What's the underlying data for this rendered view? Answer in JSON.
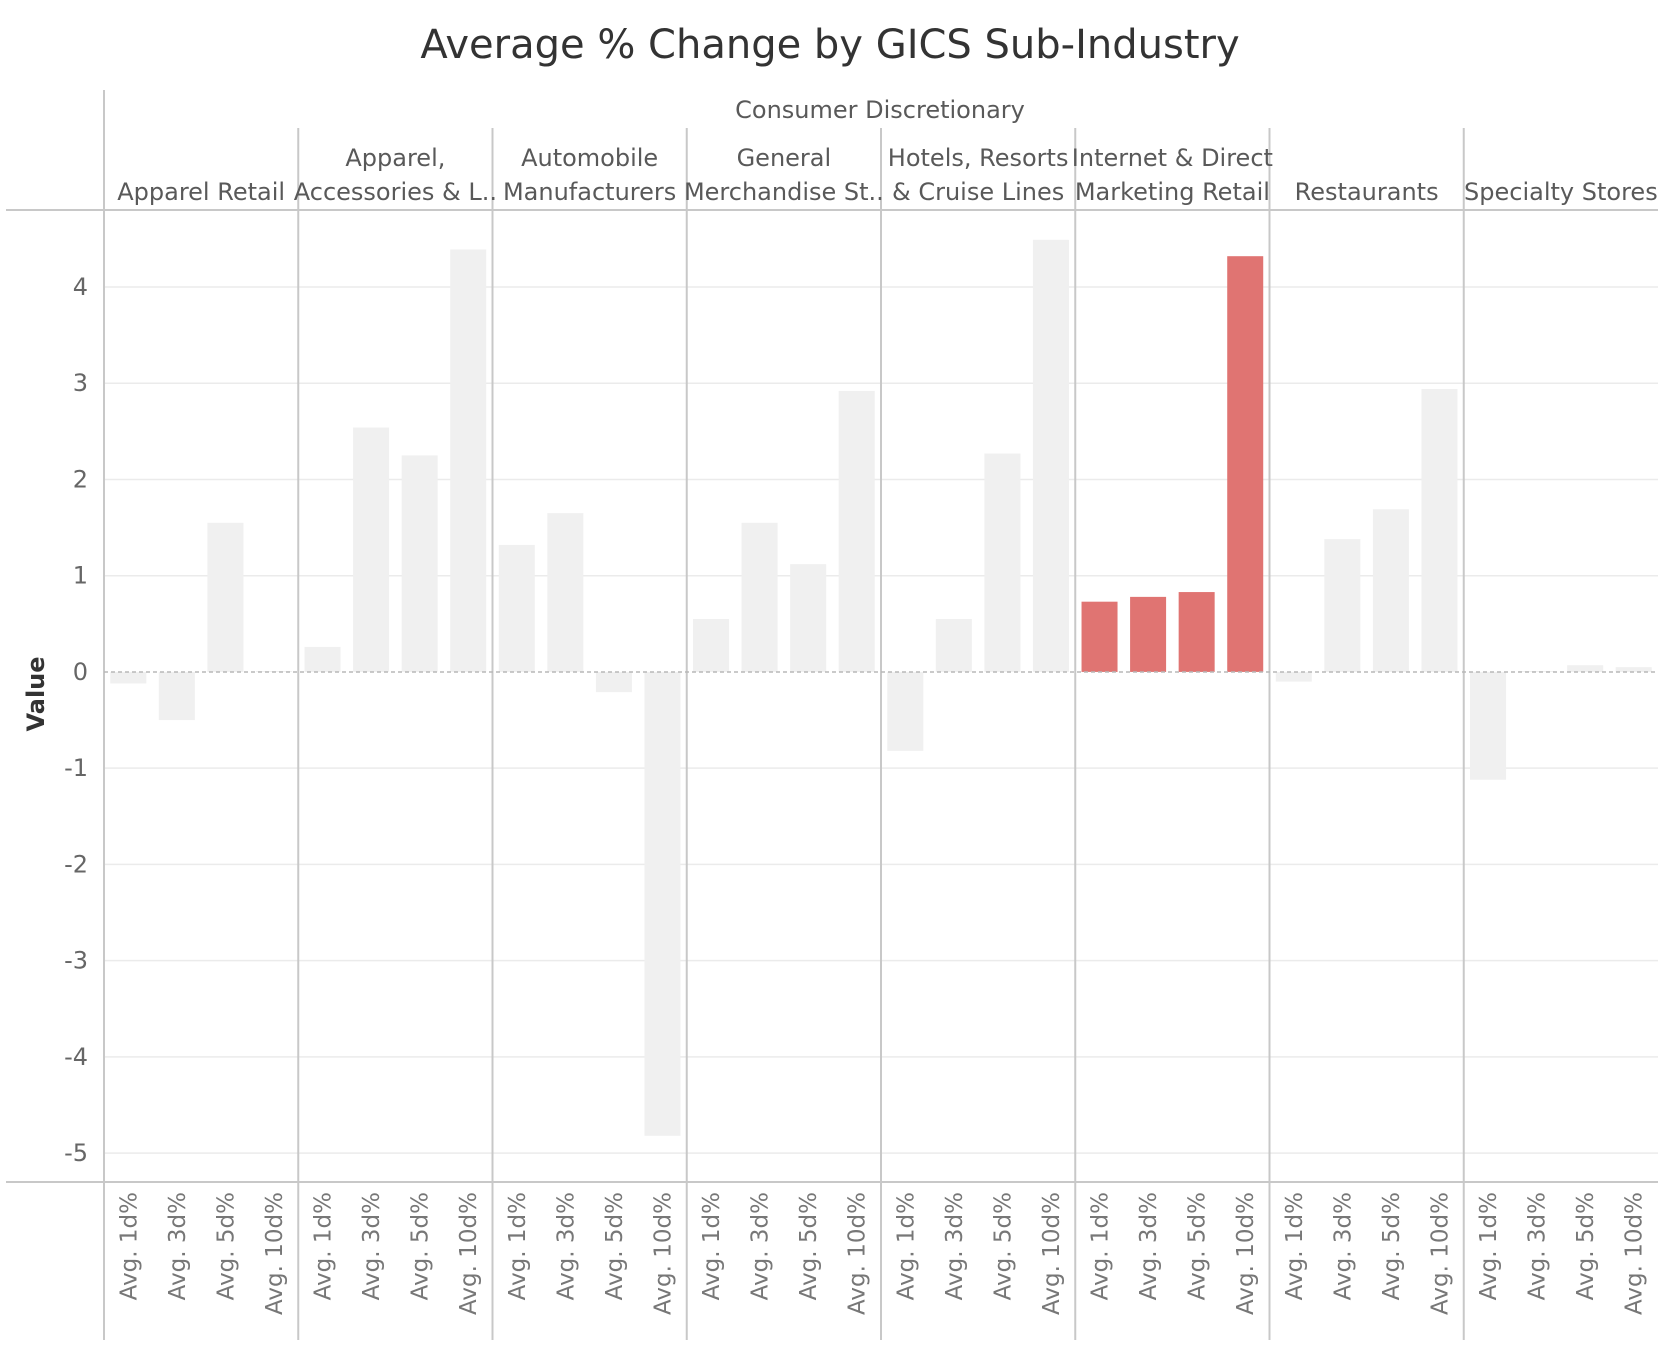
{
  "chart_data": {
    "type": "bar",
    "title": "Average % Change by GICS Sub-Industry",
    "sector": "Consumer Discretionary",
    "ylabel": "Value",
    "ylim": [
      -5.3,
      4.8
    ],
    "yticks": [
      4,
      3,
      2,
      1,
      0,
      -1,
      -2,
      -3,
      -4,
      -5
    ],
    "grid": true,
    "categories": [
      "Avg. 1d%",
      "Avg. 3d%",
      "Avg. 5d%",
      "Avg. 10d%"
    ],
    "highlight_color": "#e07472",
    "base_color": "#f0f0f0",
    "panels": [
      {
        "name": "Apparel Retail",
        "header_lines": [
          "Apparel Retail"
        ],
        "values": [
          -0.12,
          -0.5,
          1.55,
          0.01
        ],
        "highlighted": false
      },
      {
        "name": "Apparel, Accessories & L..",
        "header_lines": [
          "Apparel,",
          "Accessories & L.."
        ],
        "values": [
          0.26,
          2.54,
          2.25,
          4.39
        ],
        "highlighted": false
      },
      {
        "name": "Automobile Manufacturers",
        "header_lines": [
          "Automobile",
          "Manufacturers"
        ],
        "values": [
          1.32,
          1.65,
          -0.21,
          -4.82
        ],
        "highlighted": false
      },
      {
        "name": "General Merchandise St..",
        "header_lines": [
          "General",
          "Merchandise St.."
        ],
        "values": [
          0.55,
          1.55,
          1.12,
          2.92
        ],
        "highlighted": false
      },
      {
        "name": "Hotels, Resorts & Cruise Lines",
        "header_lines": [
          "Hotels, Resorts",
          "& Cruise Lines"
        ],
        "values": [
          -0.82,
          0.55,
          2.27,
          4.49
        ],
        "highlighted": false
      },
      {
        "name": "Internet & Direct Marketing Retail",
        "header_lines": [
          "Internet & Direct",
          "Marketing Retail"
        ],
        "values": [
          0.73,
          0.78,
          0.83,
          4.32
        ],
        "highlighted": true
      },
      {
        "name": "Restaurants",
        "header_lines": [
          "Restaurants"
        ],
        "values": [
          -0.1,
          1.38,
          1.69,
          2.94
        ],
        "highlighted": false
      },
      {
        "name": "Specialty Stores",
        "header_lines": [
          "Specialty Stores"
        ],
        "values": [
          -1.12,
          0.01,
          0.07,
          0.05
        ],
        "highlighted": false
      }
    ]
  }
}
